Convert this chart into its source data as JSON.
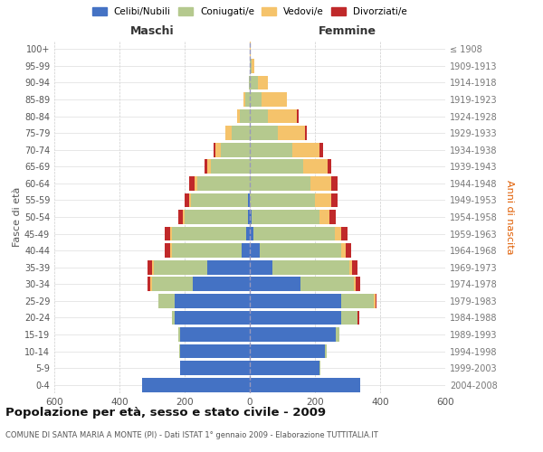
{
  "age_groups": [
    "0-4",
    "5-9",
    "10-14",
    "15-19",
    "20-24",
    "25-29",
    "30-34",
    "35-39",
    "40-44",
    "45-49",
    "50-54",
    "55-59",
    "60-64",
    "65-69",
    "70-74",
    "75-79",
    "80-84",
    "85-89",
    "90-94",
    "95-99",
    "100+"
  ],
  "birth_years": [
    "2004-2008",
    "1999-2003",
    "1994-1998",
    "1989-1993",
    "1984-1988",
    "1979-1983",
    "1974-1978",
    "1969-1973",
    "1964-1968",
    "1959-1963",
    "1954-1958",
    "1949-1953",
    "1944-1948",
    "1939-1943",
    "1934-1938",
    "1929-1933",
    "1924-1928",
    "1919-1923",
    "1914-1918",
    "1909-1913",
    "≤ 1908"
  ],
  "males": {
    "celibi": [
      330,
      215,
      215,
      215,
      230,
      230,
      175,
      130,
      25,
      10,
      5,
      5,
      0,
      0,
      0,
      0,
      0,
      0,
      0,
      0,
      0
    ],
    "coniugati": [
      0,
      0,
      2,
      5,
      10,
      50,
      125,
      165,
      215,
      230,
      195,
      175,
      160,
      120,
      90,
      55,
      30,
      15,
      3,
      0,
      0
    ],
    "vedovi": [
      0,
      0,
      0,
      0,
      0,
      0,
      5,
      5,
      5,
      5,
      5,
      5,
      10,
      10,
      15,
      20,
      10,
      5,
      0,
      0,
      0
    ],
    "divorziati": [
      0,
      0,
      0,
      0,
      0,
      0,
      10,
      15,
      15,
      15,
      15,
      15,
      15,
      10,
      5,
      0,
      0,
      0,
      0,
      0,
      0
    ]
  },
  "females": {
    "nubili": [
      340,
      215,
      230,
      265,
      280,
      280,
      155,
      70,
      30,
      10,
      5,
      0,
      0,
      0,
      0,
      0,
      0,
      0,
      0,
      0,
      0
    ],
    "coniugate": [
      0,
      2,
      5,
      10,
      50,
      100,
      165,
      235,
      250,
      250,
      210,
      200,
      185,
      165,
      130,
      85,
      55,
      35,
      25,
      5,
      0
    ],
    "vedove": [
      0,
      0,
      0,
      0,
      0,
      5,
      5,
      10,
      15,
      20,
      30,
      50,
      65,
      75,
      85,
      85,
      90,
      80,
      30,
      10,
      2
    ],
    "divorziate": [
      0,
      0,
      0,
      0,
      5,
      5,
      15,
      15,
      15,
      20,
      20,
      20,
      20,
      10,
      10,
      5,
      5,
      0,
      0,
      0,
      0
    ]
  },
  "colors": {
    "celibi_nubili": "#4472C4",
    "coniugati": "#B5C98E",
    "vedovi": "#F5C36B",
    "divorziati": "#C0292A"
  },
  "xlim": 600,
  "title": "Popolazione per età, sesso e stato civile - 2009",
  "subtitle": "COMUNE DI SANTA MARIA A MONTE (PI) - Dati ISTAT 1° gennaio 2009 - Elaborazione TUTTITALIA.IT",
  "xlabel_left": "Maschi",
  "xlabel_right": "Femmine",
  "ylabel_left": "Fasce di età",
  "ylabel_right": "Anni di nascita",
  "legend_labels": [
    "Celibi/Nubili",
    "Coniugati/e",
    "Vedovi/e",
    "Divorziati/e"
  ]
}
